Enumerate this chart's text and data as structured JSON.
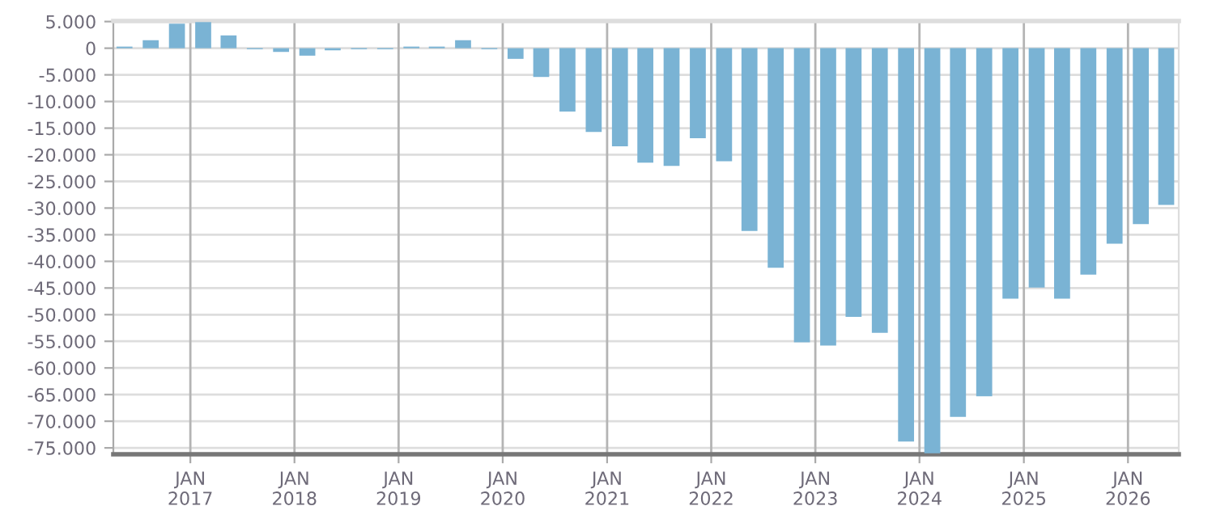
{
  "chart_data": {
    "type": "bar",
    "color": "#7ab3d4",
    "grid": true,
    "x": [
      "2016-05-15",
      "2016-08-15",
      "2016-11-15",
      "2017-02-15",
      "2017-05-15",
      "2017-08-15",
      "2017-11-15",
      "2018-02-15",
      "2018-05-15",
      "2018-08-15",
      "2018-11-15",
      "2019-02-15",
      "2019-05-15",
      "2019-08-15",
      "2019-11-15",
      "2020-02-15",
      "2020-05-15",
      "2020-08-15",
      "2020-11-15",
      "2021-02-15",
      "2021-05-15",
      "2021-08-15",
      "2021-11-15",
      "2022-02-15",
      "2022-05-15",
      "2022-08-15",
      "2022-11-15",
      "2023-02-15",
      "2023-05-15",
      "2023-08-15",
      "2023-11-15",
      "2024-02-15",
      "2024-05-15",
      "2024-08-15",
      "2024-11-15",
      "2025-02-15",
      "2025-05-15",
      "2025-08-15",
      "2025-11-15",
      "2026-02-15",
      "2026-05-15"
    ],
    "values": [
      300,
      1500,
      4600,
      4900,
      2400,
      -200,
      -700,
      -1400,
      -400,
      -200,
      -200,
      300,
      300,
      1500,
      -200,
      -2000,
      -5400,
      -11900,
      -15700,
      -18400,
      -21500,
      -22100,
      -16900,
      -21200,
      -34300,
      -41200,
      -55200,
      -55800,
      -50400,
      -53400,
      -73800,
      -76000,
      -69200,
      -65300,
      -47000,
      -44900,
      -47000,
      -42500,
      -36700,
      -33000,
      -29400
    ],
    "xlim": [
      "2016-04-06",
      "2026-06-28"
    ],
    "xticks": [
      {
        "value": "2017-01-01",
        "label": "JAN\n2017"
      },
      {
        "value": "2018-01-01",
        "label": "JAN\n2018"
      },
      {
        "value": "2019-01-01",
        "label": "JAN\n2019"
      },
      {
        "value": "2020-01-01",
        "label": "JAN\n2020"
      },
      {
        "value": "2021-01-01",
        "label": "JAN\n2021"
      },
      {
        "value": "2022-01-01",
        "label": "JAN\n2022"
      },
      {
        "value": "2023-01-01",
        "label": "JAN\n2023"
      },
      {
        "value": "2024-01-01",
        "label": "JAN\n2024"
      },
      {
        "value": "2025-01-01",
        "label": "JAN\n2025"
      },
      {
        "value": "2026-01-01",
        "label": "JAN\n2026"
      }
    ],
    "ylim": [
      -76200,
      5100
    ],
    "yticks": [
      {
        "value": 5000,
        "label": "5.000"
      },
      0,
      {
        "value": -5000,
        "label": "-5.000"
      },
      {
        "value": -10000,
        "label": "-10.000"
      },
      {
        "value": -15000,
        "label": "-15.000"
      },
      {
        "value": -20000,
        "label": "-20.000"
      },
      {
        "value": -25000,
        "label": "-25.000"
      },
      {
        "value": -30000,
        "label": "-30.000"
      },
      {
        "value": -35000,
        "label": "-35.000"
      },
      {
        "value": -40000,
        "label": "-40.000"
      },
      {
        "value": -45000,
        "label": "-45.000"
      },
      {
        "value": -50000,
        "label": "-50.000"
      },
      {
        "value": -55000,
        "label": "-55.000"
      },
      {
        "value": -60000,
        "label": "-60.000"
      },
      {
        "value": -65000,
        "label": "-65.000"
      },
      {
        "value": -70000,
        "label": "-70.000"
      },
      {
        "value": -75000,
        "label": "-75.000"
      }
    ]
  }
}
